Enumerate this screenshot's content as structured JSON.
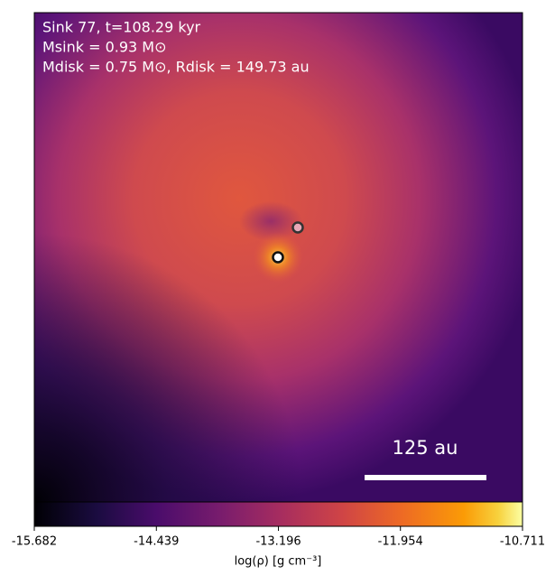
{
  "chart_data": {
    "type": "image",
    "annotations": [
      "Sink 77, t=108.29 kyr",
      "Msink = 0.93 M⊙",
      "Mdisk = 0.75 M⊙, Rdisk = 149.73 au"
    ],
    "scale_bar": "125 au",
    "colorbar": {
      "label": "log(ρ) [g cm⁻³]",
      "clim": [
        -15.682,
        -10.711
      ],
      "ticks": [
        -15.682,
        -14.439,
        -13.196,
        -11.954,
        -10.711
      ],
      "colormap": "inferno"
    }
  }
}
